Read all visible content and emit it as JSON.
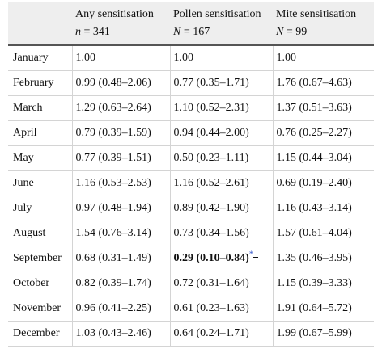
{
  "header": {
    "col0": "",
    "col1": {
      "title": "Any sensitisation",
      "n_label": "n",
      "n_value": " = 341"
    },
    "col2": {
      "title": "Pollen sensitisation",
      "n_label": "N",
      "n_value": " = 167"
    },
    "col3": {
      "title": "Mite sensitisation",
      "n_label": "N",
      "n_value": " = 99"
    }
  },
  "rows": [
    {
      "month": "January",
      "any": "1.00",
      "pollen": "1.00",
      "mite": "1.00"
    },
    {
      "month": "February",
      "any": "0.99 (0.48–2.06)",
      "pollen": "0.77 (0.35–1.71)",
      "mite": "1.76 (0.67–4.63)"
    },
    {
      "month": "March",
      "any": "1.29 (0.63–2.64)",
      "pollen": "1.10 (0.52–2.31)",
      "mite": "1.37 (0.51–3.63)"
    },
    {
      "month": "April",
      "any": "0.79 (0.39–1.59)",
      "pollen": "0.94 (0.44–2.00)",
      "mite": "0.76 (0.25–2.27)"
    },
    {
      "month": "May",
      "any": "0.77 (0.39–1.51)",
      "pollen": "0.50 (0.23–1.11)",
      "mite": "1.15 (0.44–3.04)"
    },
    {
      "month": "June",
      "any": "1.16 (0.53–2.53)",
      "pollen": "1.16 (0.52–2.61)",
      "mite": "0.69 (0.19–2.40)"
    },
    {
      "month": "July",
      "any": "0.97 (0.48–1.94)",
      "pollen": "0.89 (0.42–1.90)",
      "mite": "1.16 (0.43–3.14)"
    },
    {
      "month": "August",
      "any": "1.54 (0.76–3.14)",
      "pollen": "0.73 (0.34–1.56)",
      "mite": "1.57 (0.61–4.04)"
    },
    {
      "month": "September",
      "any": "0.68 (0.31–1.49)",
      "pollen": "0.29 (0.10–0.84)",
      "mite": "1.35 (0.46–3.95)",
      "pollen_bold": true,
      "pollen_note": "*"
    },
    {
      "month": "October",
      "any": "0.82 (0.39–1.74)",
      "pollen": "0.72 (0.31–1.64)",
      "mite": "1.15 (0.39–3.33)"
    },
    {
      "month": "November",
      "any": "0.96 (0.41–2.25)",
      "pollen": "0.61 (0.23–1.63)",
      "mite": "1.91 (0.64–5.72)"
    },
    {
      "month": "December",
      "any": "1.03 (0.43–2.46)",
      "pollen": "0.64 (0.24–1.71)",
      "mite": "1.99 (0.67–5.99)"
    }
  ]
}
